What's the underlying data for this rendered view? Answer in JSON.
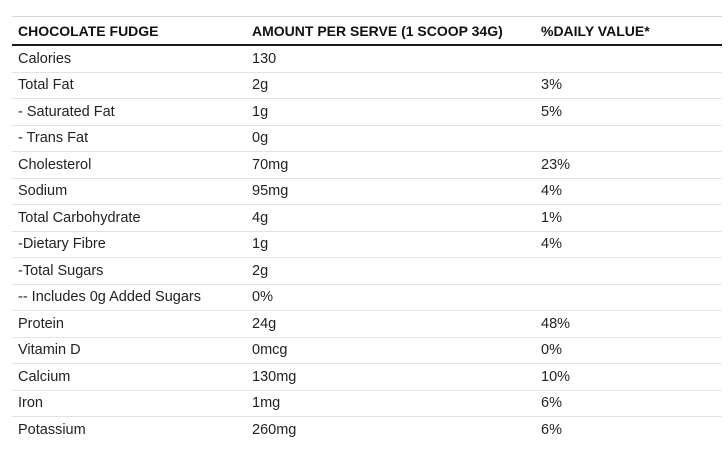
{
  "table": {
    "headers": [
      "CHOCOLATE FUDGE",
      "AMOUNT PER SERVE (1 SCOOP 34G)",
      "%DAILY VALUE*"
    ],
    "rows": [
      {
        "nutrient": "Calories",
        "amount": "130",
        "daily_value": ""
      },
      {
        "nutrient": "Total Fat",
        "amount": "2g",
        "daily_value": "3%"
      },
      {
        "nutrient": "- Saturated Fat",
        "amount": "1g",
        "daily_value": "5%"
      },
      {
        "nutrient": "- Trans Fat",
        "amount": "0g",
        "daily_value": ""
      },
      {
        "nutrient": "Cholesterol",
        "amount": "70mg",
        "daily_value": "23%"
      },
      {
        "nutrient": "Sodium",
        "amount": "95mg",
        "daily_value": "4%"
      },
      {
        "nutrient": "Total Carbohydrate",
        "amount": "4g",
        "daily_value": "1%"
      },
      {
        "nutrient": "-Dietary Fibre",
        "amount": "1g",
        "daily_value": "4%"
      },
      {
        "nutrient": "-Total Sugars",
        "amount": "2g",
        "daily_value": ""
      },
      {
        "nutrient": "-- Includes 0g Added Sugars",
        "amount": "0%",
        "daily_value": ""
      },
      {
        "nutrient": "Protein",
        "amount": "24g",
        "daily_value": "48%"
      },
      {
        "nutrient": "Vitamin D",
        "amount": "0mcg",
        "daily_value": "0%"
      },
      {
        "nutrient": "Calcium",
        "amount": "130mg",
        "daily_value": "10%"
      },
      {
        "nutrient": "Iron",
        "amount": "1mg",
        "daily_value": "6%"
      },
      {
        "nutrient": "Potassium",
        "amount": "260mg",
        "daily_value": "6%"
      }
    ]
  }
}
